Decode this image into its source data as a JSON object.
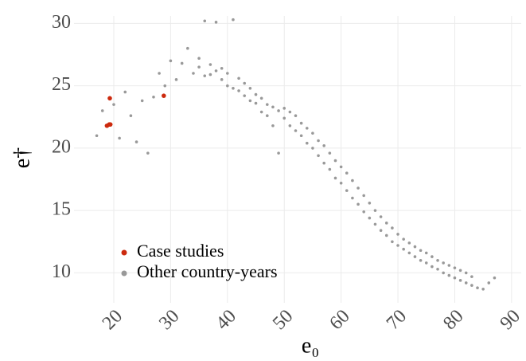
{
  "chart_data": {
    "type": "scatter",
    "xlabel": "e₀",
    "ylabel": "e†",
    "xlim": [
      13,
      91.7
    ],
    "ylim": [
      7.6,
      30.6
    ],
    "xticks": [
      20,
      30,
      40,
      50,
      60,
      70,
      80,
      90
    ],
    "yticks": [
      10,
      15,
      20,
      25,
      30
    ],
    "grid": true,
    "legend": "bottom-left",
    "series": [
      {
        "name": "Other country-years",
        "color": "#999999",
        "x": [
          17,
          18,
          20,
          21,
          22,
          23,
          24,
          25,
          26,
          27,
          28,
          29,
          30,
          31,
          32,
          33,
          34,
          35,
          35,
          36,
          36,
          37,
          37,
          38,
          38,
          39,
          39,
          40,
          40,
          41,
          41,
          42,
          42,
          43,
          43,
          44,
          44,
          45,
          45,
          46,
          46,
          47,
          47,
          48,
          48,
          49,
          49,
          50,
          50,
          51,
          51,
          52,
          52,
          53,
          53,
          54,
          54,
          55,
          55,
          56,
          56,
          57,
          57,
          58,
          58,
          59,
          59,
          60,
          60,
          61,
          61,
          62,
          62,
          63,
          63,
          64,
          64,
          65,
          65,
          66,
          66,
          67,
          67,
          68,
          68,
          69,
          69,
          70,
          70,
          71,
          71,
          72,
          72,
          73,
          73,
          74,
          74,
          75,
          75,
          76,
          76,
          77,
          77,
          78,
          78,
          79,
          79,
          80,
          80,
          81,
          81,
          82,
          82,
          83,
          83,
          84,
          85,
          86,
          87
        ],
        "values": [
          21.0,
          23.0,
          23.5,
          20.8,
          24.5,
          22.6,
          20.5,
          23.8,
          19.6,
          24.1,
          26.0,
          25.0,
          27.0,
          25.5,
          26.8,
          28.0,
          26.0,
          26.5,
          27.2,
          30.2,
          25.8,
          26.7,
          25.9,
          26.2,
          30.1,
          25.5,
          26.4,
          25.0,
          26.0,
          30.3,
          24.8,
          25.6,
          24.6,
          25.2,
          24.2,
          24.8,
          23.8,
          24.3,
          23.6,
          24.0,
          22.9,
          23.5,
          22.6,
          23.3,
          21.8,
          23.0,
          19.6,
          22.4,
          23.2,
          21.8,
          22.9,
          21.4,
          22.6,
          21.0,
          22.0,
          20.4,
          21.6,
          20.0,
          21.2,
          19.4,
          20.6,
          18.8,
          20.2,
          18.3,
          19.6,
          17.6,
          19.0,
          17.2,
          18.5,
          16.6,
          18.0,
          16.0,
          17.4,
          15.5,
          16.8,
          14.9,
          16.2,
          14.4,
          15.6,
          13.9,
          15.0,
          13.4,
          14.5,
          13.0,
          14.0,
          12.5,
          13.6,
          12.2,
          13.1,
          11.9,
          12.7,
          11.6,
          12.4,
          11.3,
          12.1,
          11.0,
          11.8,
          10.8,
          11.6,
          10.5,
          11.3,
          10.3,
          11.0,
          10.0,
          10.8,
          9.8,
          10.6,
          9.6,
          10.4,
          9.4,
          10.2,
          9.2,
          10.0,
          9.0,
          9.7,
          8.8,
          8.7,
          9.2,
          9.6
        ]
      },
      {
        "name": "Case studies",
        "color": "#cc2a0e",
        "x": [
          19.3,
          18.8,
          19.2,
          19.4,
          28.8
        ],
        "values": [
          24.0,
          21.8,
          21.9,
          21.9,
          24.2
        ]
      }
    ]
  }
}
